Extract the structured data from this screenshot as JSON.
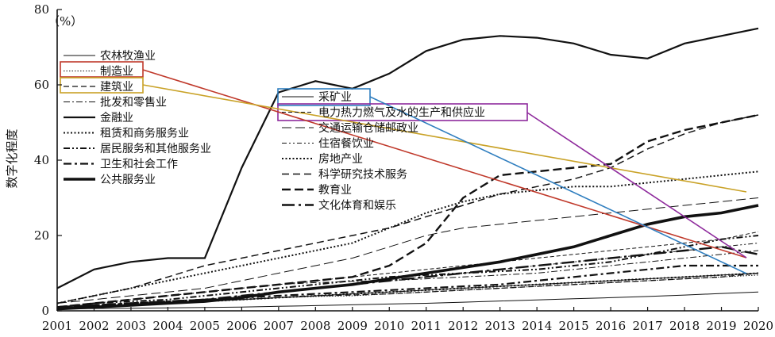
{
  "chart_data": {
    "type": "line",
    "unit_label": "（%）",
    "ylabel": "数字化程度",
    "xlabel": "",
    "ylim": [
      0,
      80
    ],
    "yticks": [
      0,
      20,
      40,
      60,
      80
    ],
    "x": [
      "2001",
      "2002",
      "2003",
      "2004",
      "2005",
      "2006",
      "2007",
      "2008",
      "2009",
      "2010",
      "2011",
      "2012",
      "2013",
      "2014",
      "2015",
      "2016",
      "2017",
      "2018",
      "2019",
      "2020"
    ],
    "series": [
      {
        "name": "农林牧渔业",
        "style": "thin",
        "values": [
          0.5,
          0.6,
          0.7,
          0.8,
          0.9,
          1.0,
          1.2,
          1.4,
          1.6,
          1.8,
          2.0,
          2.3,
          2.6,
          2.9,
          3.2,
          3.5,
          3.8,
          4.2,
          4.6,
          5
        ]
      },
      {
        "name": "制造业",
        "style": "dotted-thin",
        "values": [
          1,
          1.2,
          1.5,
          2,
          2.5,
          3,
          3.5,
          3.8,
          4,
          4.5,
          5,
          5.5,
          6,
          6.5,
          7,
          7.5,
          8,
          8.5,
          9,
          9.5
        ]
      },
      {
        "name": "建筑业",
        "style": "dashed",
        "values": [
          0.5,
          1,
          1.5,
          2,
          2.5,
          3,
          3.5,
          4,
          4.2,
          4.5,
          5,
          5.5,
          6,
          6.5,
          7,
          7.5,
          8,
          8.5,
          9,
          10
        ]
      },
      {
        "name": "批发和零售业",
        "style": "dashdot-thin",
        "values": [
          1,
          2,
          3,
          4,
          5,
          6,
          7,
          7.5,
          7.8,
          8,
          8.5,
          9,
          9.5,
          10,
          11,
          12,
          13,
          14,
          15,
          16
        ]
      },
      {
        "name": "金融业",
        "style": "solid-bold",
        "values": [
          6,
          11,
          13,
          14,
          14,
          38,
          58,
          61,
          59,
          63,
          69,
          72,
          73,
          72.5,
          71,
          68,
          67,
          71,
          73,
          75
        ]
      },
      {
        "name": "租赁和商务服务业",
        "style": "dotted",
        "values": [
          2,
          4,
          6,
          8,
          10,
          12,
          14,
          16,
          18,
          22,
          26,
          29,
          31,
          32,
          33,
          33,
          34,
          35,
          36,
          37
        ]
      },
      {
        "name": "居民服务和其他服务业",
        "style": "dashdotdot",
        "values": [
          1,
          2,
          2.5,
          3,
          4,
          5,
          6,
          7,
          8,
          9,
          9.5,
          10,
          10.5,
          11,
          12,
          13,
          15,
          17,
          19,
          20
        ]
      },
      {
        "name": "卫生和社会工作",
        "style": "dashdot-bold",
        "values": [
          1,
          1.5,
          2,
          2.5,
          3,
          3.5,
          4,
          4.5,
          5,
          5.5,
          6,
          6.5,
          7,
          8,
          9,
          10,
          11,
          12,
          12,
          12
        ]
      },
      {
        "name": "公共服务业",
        "style": "solid-heavy",
        "values": [
          0.5,
          1,
          1.5,
          2,
          2.5,
          3.5,
          5,
          6,
          7,
          8.5,
          10,
          11.5,
          13,
          15,
          17,
          20,
          23,
          25,
          26,
          28
        ]
      },
      {
        "name": "采矿业",
        "style": "thin",
        "values": [
          0.5,
          1,
          1.5,
          2,
          2.5,
          3,
          3.5,
          4,
          4.5,
          5,
          5.5,
          6,
          6.5,
          7,
          7.5,
          8,
          8.5,
          9,
          9.5,
          10
        ]
      },
      {
        "name": "电力热力燃气及水的生产和供应业",
        "style": "dashed-thin",
        "values": [
          1,
          2,
          3,
          4,
          5,
          6,
          7,
          8,
          9,
          10,
          11,
          12,
          13,
          14,
          15,
          16,
          17,
          18,
          19,
          21
        ]
      },
      {
        "name": "交通运输仓储邮政业",
        "style": "dashed-long",
        "values": [
          2,
          3,
          4,
          5,
          6,
          8,
          10,
          12,
          14,
          17,
          20,
          22,
          23,
          24,
          25,
          26,
          27,
          28,
          29,
          30
        ]
      },
      {
        "name": "住宿餐饮业",
        "style": "dashdotdot-thin",
        "values": [
          1,
          1.5,
          2,
          2.5,
          3,
          4,
          5,
          6,
          7,
          8,
          9,
          10,
          11,
          12,
          13,
          14,
          15,
          16,
          17,
          18
        ]
      },
      {
        "name": "房地产业",
        "style": "dotted",
        "values": [
          0.5,
          1,
          1.5,
          2,
          2.5,
          3,
          3.5,
          4,
          4.5,
          5,
          5.5,
          6,
          6.5,
          7,
          7.5,
          8,
          8.5,
          9,
          9.5,
          10
        ]
      },
      {
        "name": "科学研究技术服务",
        "style": "dashed-medium",
        "values": [
          2,
          4,
          6,
          9,
          12,
          14,
          16,
          18,
          20,
          22,
          25,
          28,
          31,
          33,
          35,
          38,
          43,
          47,
          50,
          52
        ]
      },
      {
        "name": "教育业",
        "style": "dashed-bold",
        "values": [
          1,
          2,
          3,
          4,
          5,
          6,
          7,
          8,
          9,
          12,
          18,
          30,
          36,
          37,
          38,
          39,
          45,
          48,
          50,
          52
        ]
      },
      {
        "name": "文化体育和娱乐",
        "style": "longdash-bold",
        "values": [
          1,
          1.5,
          2,
          2.5,
          3,
          4,
          5,
          6,
          7,
          8,
          9,
          10,
          11,
          12,
          13,
          14,
          15,
          16,
          17,
          15
        ]
      }
    ],
    "annotation_colors": {
      "manufacturing": "#c0392b",
      "construction": "#c9a227",
      "mining": "#2f7ebf",
      "utilities": "#8e2a9c"
    },
    "legend_columns": 2,
    "grid": false
  }
}
